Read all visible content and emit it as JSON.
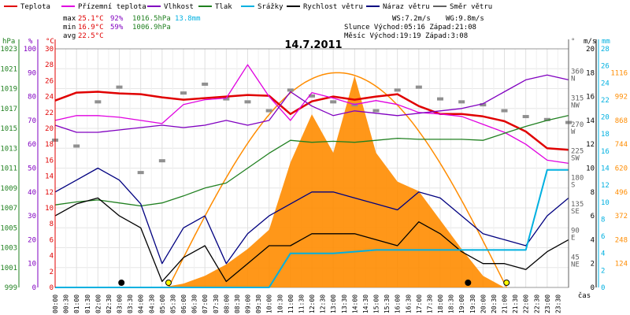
{
  "chart_data": {
    "type": "line",
    "title": "14.7.2011",
    "legend": [
      {
        "label": "Teplota",
        "color": "#e00000"
      },
      {
        "label": "Přízemní teplota",
        "color": "#e000e0"
      },
      {
        "label": "Vlhkost",
        "color": "#8000c0"
      },
      {
        "label": "Tlak",
        "color": "#208020"
      },
      {
        "label": "Srážky",
        "color": "#00b0e0"
      },
      {
        "label": "Rychlost větru",
        "color": "#000000"
      },
      {
        "label": "Náraz větru",
        "color": "#000080"
      },
      {
        "label": "Směr větru",
        "color": "#606060"
      }
    ],
    "stats": {
      "max_label": "max",
      "max_temp": "25.1°C",
      "max_hum": "92%",
      "max_press": "1016.5hPa",
      "max_rain": "13.8mm",
      "min_label": "min",
      "min_temp": "16.9°C",
      "min_hum": "59%",
      "min_press": "1006.9hPa",
      "avg_label": "avg",
      "avg_temp": "22.5°C"
    },
    "info": {
      "ws": "WS:7.2m/s",
      "wg": "WG:9.8m/s",
      "sun": "Slunce Východ:05:16  Západ:21:08",
      "moon": "Měsíc  Východ:19:19  Západ:3:08"
    },
    "axes": {
      "hpa_title": "hPa",
      "hpa_ticks": [
        "1023",
        "1021",
        "1019",
        "1017",
        "1015",
        "1013",
        "1011",
        "1009",
        "1007",
        "1005",
        "1003",
        "1001",
        "999"
      ],
      "pct_title": "%",
      "pct_ticks": [
        "100",
        "90",
        "80",
        "70",
        "60",
        "50",
        "40",
        "30",
        "20",
        "10",
        "0"
      ],
      "degc_title": "°C",
      "degc_ticks": [
        "30",
        "28",
        "26",
        "24",
        "22",
        "20",
        "18",
        "16",
        "14",
        "12",
        "10",
        "8",
        "6",
        "4",
        "2",
        "0"
      ],
      "deg_title": "°",
      "deg_ticks": [
        {
          "v": "360",
          "d": "N"
        },
        {
          "v": "315",
          "d": "NW"
        },
        {
          "v": "270",
          "d": "W"
        },
        {
          "v": "225",
          "d": "SW"
        },
        {
          "v": "180",
          "d": "S"
        },
        {
          "v": "135",
          "d": "SE"
        },
        {
          "v": "90",
          "d": "E"
        },
        {
          "v": "45",
          "d": "NE"
        }
      ],
      "ms_title": "m/s",
      "ms_ticks": [
        "20",
        "18",
        "16",
        "14",
        "12",
        "10",
        "8",
        "6",
        "4",
        "2",
        "0"
      ],
      "mm_title": "mm",
      "mm_ticks": [
        "28",
        "26",
        "24",
        "22",
        "20",
        "18",
        "16",
        "14",
        "12",
        "10",
        "8",
        "6",
        "4",
        "2",
        "0"
      ],
      "wm2_ticks": [
        "1116",
        "992",
        "868",
        "744",
        "620",
        "496",
        "372",
        "248",
        "124"
      ],
      "x_title": "čas",
      "x_ticks": [
        "00:00",
        "00:30",
        "01:00",
        "01:30",
        "02:00",
        "02:30",
        "03:00",
        "03:30",
        "04:00",
        "04:30",
        "05:00",
        "05:30",
        "06:00",
        "06:30",
        "07:00",
        "07:30",
        "08:00",
        "08:30",
        "09:00",
        "09:30",
        "10:00",
        "10:30",
        "11:00",
        "11:30",
        "12:00",
        "12:30",
        "13:00",
        "13:30",
        "14:00",
        "14:30",
        "15:00",
        "15:30",
        "16:00",
        "16:30",
        "17:00",
        "17:30",
        "18:00",
        "18:30",
        "19:00",
        "19:30",
        "20:00",
        "20:30",
        "21:00",
        "21:30",
        "22:00",
        "22:30",
        "23:00",
        "23:30"
      ]
    },
    "x_hours": [
      0,
      1,
      2,
      3,
      4,
      5,
      6,
      7,
      8,
      9,
      10,
      11,
      12,
      13,
      14,
      15,
      16,
      17,
      18,
      19,
      20,
      21,
      22,
      23,
      24
    ],
    "series": [
      {
        "name": "Teplota",
        "unit": "°C",
        "color": "#e00000",
        "values": [
          23.5,
          24.5,
          24.6,
          24.4,
          24.3,
          23.9,
          23.6,
          23.8,
          24.0,
          24.2,
          24.1,
          21.8,
          23.4,
          24.0,
          23.6,
          24.0,
          24.3,
          22.8,
          21.8,
          21.8,
          21.5,
          20.9,
          19.6,
          17.5,
          17.3
        ]
      },
      {
        "name": "Přízemní teplota",
        "unit": "°C",
        "color": "#e000e0",
        "values": [
          21.0,
          21.6,
          21.6,
          21.4,
          21.0,
          20.6,
          23.0,
          23.6,
          23.8,
          28.0,
          24.0,
          21.0,
          24.5,
          23.8,
          23.0,
          23.5,
          23.0,
          22.0,
          21.8,
          21.5,
          20.5,
          19.5,
          18.0,
          16.0,
          15.6
        ]
      },
      {
        "name": "Vlhkost",
        "unit": "%",
        "color": "#8000c0",
        "values": [
          68,
          65,
          65,
          66,
          67,
          68,
          67,
          68,
          70,
          68,
          70,
          82,
          76,
          72,
          74,
          73,
          72,
          73,
          74,
          75,
          77,
          82,
          87,
          89,
          87
        ]
      },
      {
        "name": "Tlak",
        "unit": "hPa",
        "color": "#208020",
        "values": [
          1007.3,
          1007.6,
          1007.8,
          1007.5,
          1007.2,
          1007.5,
          1008.2,
          1009.0,
          1009.5,
          1011.0,
          1012.5,
          1013.8,
          1013.6,
          1013.7,
          1013.6,
          1013.8,
          1014.0,
          1013.9,
          1013.9,
          1013.9,
          1013.8,
          1014.5,
          1015.2,
          1015.8,
          1016.3
        ]
      },
      {
        "name": "Rychlost větru",
        "unit": "m/s",
        "color": "#000000",
        "values": [
          6,
          7,
          7.5,
          6,
          5,
          0.5,
          2.5,
          3.5,
          0.5,
          2,
          3.5,
          3.5,
          4.5,
          4.5,
          4.5,
          4,
          3.5,
          5.5,
          4.5,
          3,
          2,
          2,
          1.5,
          3,
          4
        ]
      },
      {
        "name": "Náraz větru",
        "unit": "m/s",
        "color": "#000080",
        "values": [
          8,
          9,
          10,
          9,
          7,
          2,
          5,
          6,
          2,
          4.5,
          6,
          7,
          8,
          8,
          7.5,
          7,
          6.5,
          8,
          7.5,
          6,
          4.5,
          4,
          3.5,
          6,
          7.5
        ]
      },
      {
        "name": "Srážky",
        "unit": "mm",
        "color": "#00b0e0",
        "values": [
          0,
          0,
          0,
          0,
          0,
          0,
          0,
          0,
          0,
          0,
          0,
          4.0,
          4.0,
          4.0,
          4.2,
          4.4,
          4.4,
          4.4,
          4.4,
          4.4,
          4.4,
          4.4,
          4.4,
          13.8,
          13.8
        ]
      }
    ],
    "wind_direction_deg": [
      250,
      240,
      315,
      340,
      195,
      215,
      330,
      345,
      320,
      315,
      300,
      335,
      325,
      315,
      310,
      300,
      335,
      340,
      320,
      315,
      310,
      300,
      290,
      285,
      280
    ],
    "solar_radiation": {
      "unit": "W/m²",
      "color": "#ff8c00",
      "values": [
        0,
        0,
        0,
        0,
        0,
        0,
        20,
        60,
        120,
        200,
        300,
        650,
        900,
        700,
        1100,
        700,
        550,
        500,
        350,
        200,
        60,
        0,
        0,
        0,
        0
      ]
    },
    "sun_curve_peak": 1116,
    "markers": [
      {
        "hour": 3.1,
        "kind": "moonset",
        "color": "#000000"
      },
      {
        "hour": 5.3,
        "kind": "sunrise",
        "color": "#ffff00"
      },
      {
        "hour": 19.3,
        "kind": "moonrise",
        "color": "#000000"
      },
      {
        "hour": 21.1,
        "kind": "sunset",
        "color": "#ffff00"
      }
    ]
  }
}
